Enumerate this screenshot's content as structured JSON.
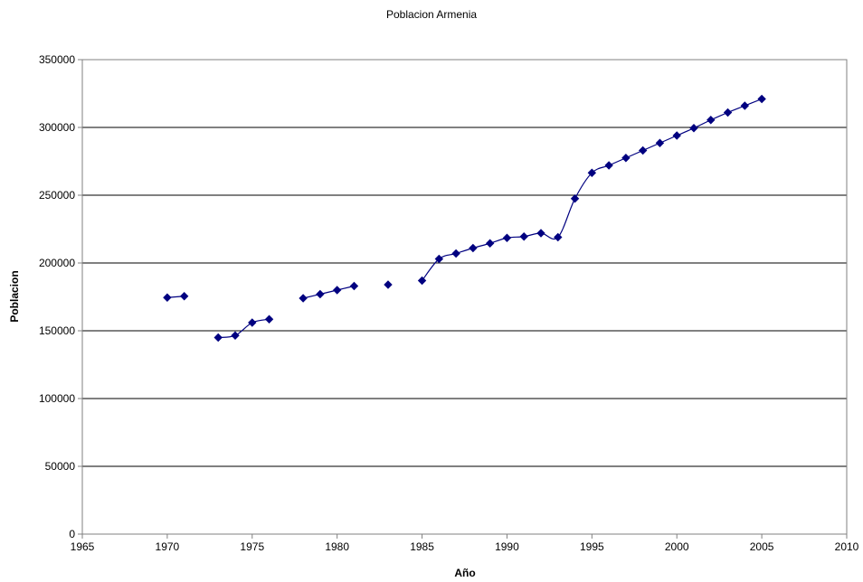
{
  "chart_data": {
    "type": "scatter",
    "title": "Poblacion Armenia",
    "xlabel": "Año",
    "ylabel": "Poblacion",
    "xlim": [
      1965,
      2010
    ],
    "ylim": [
      0,
      350000
    ],
    "x_ticks": [
      "1965",
      "1970",
      "1975",
      "1980",
      "1985",
      "1990",
      "1995",
      "2000",
      "2005",
      "2010"
    ],
    "y_ticks": [
      "0",
      "50000",
      "100000",
      "150000",
      "200000",
      "250000",
      "300000",
      "350000"
    ],
    "grid": "horizontal",
    "legend": "none",
    "series": [
      {
        "color": "#000080",
        "marker": "diamond",
        "line": "smoothed",
        "points": [
          [
            1970,
            174500
          ],
          [
            1971,
            175500
          ],
          [
            1973,
            145000
          ],
          [
            1974,
            146500
          ],
          [
            1975,
            156000
          ],
          [
            1976,
            158500
          ],
          [
            1978,
            174000
          ],
          [
            1979,
            177000
          ],
          [
            1980,
            180000
          ],
          [
            1981,
            183000
          ],
          [
            1983,
            184000
          ],
          [
            1985,
            187000
          ],
          [
            1986,
            203000
          ],
          [
            1987,
            207000
          ],
          [
            1988,
            211000
          ],
          [
            1989,
            214500
          ],
          [
            1990,
            218500
          ],
          [
            1991,
            219500
          ],
          [
            1992,
            222000
          ],
          [
            1993,
            219000
          ],
          [
            1994,
            247500
          ],
          [
            1995,
            266500
          ],
          [
            1996,
            272000
          ],
          [
            1997,
            277500
          ],
          [
            1998,
            283000
          ],
          [
            1999,
            288500
          ],
          [
            2000,
            294000
          ],
          [
            2001,
            299500
          ],
          [
            2002,
            305500
          ],
          [
            2003,
            311000
          ],
          [
            2004,
            316000
          ],
          [
            2005,
            321000
          ]
        ]
      }
    ]
  }
}
